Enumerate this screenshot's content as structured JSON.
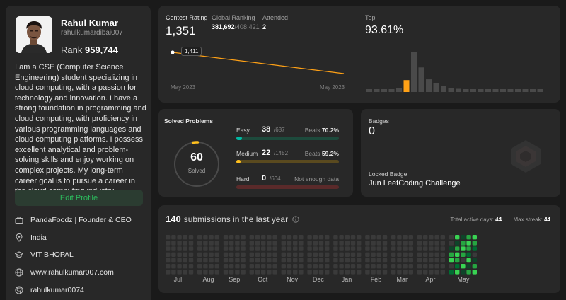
{
  "profile": {
    "name": "Rahul Kumar",
    "username": "rahulkumardibai007",
    "rank_label": "Rank",
    "rank_value": "959,744",
    "bio": "I am a CSE (Computer Science Engineering) student specializing in cloud computing, with a passion for technology and innovation. I have a strong foundation in programming and cloud computing, with proficiency in various programming languages and cloud computing platforms. I possess excellent analytical and problem-solving skills and enjoy working on complex projects. My long-term career goal is to pursue a career in the cloud computing industry.",
    "edit_button": "Edit Profile",
    "company": "PandaFoodz | Founder & CEO",
    "location": "India",
    "school": "VIT BHOPAL",
    "website": "www.rahulkumar007.com",
    "github": "rahulkumar0074"
  },
  "contest": {
    "rating_label": "Contest Rating",
    "rating_value": "1,351",
    "global_label": "Global Ranking",
    "global_value": "381,692",
    "global_total": "/408,421",
    "attended_label": "Attended",
    "attended_value": "2",
    "top_label": "Top",
    "top_value": "93.61%",
    "tooltip": "1,411",
    "month_start": "May 2023",
    "month_end": "May 2023",
    "rating_series": [
      1411,
      1351
    ],
    "histogram": [
      2,
      2,
      3,
      4,
      9,
      30,
      100,
      62,
      32,
      22,
      16,
      10,
      8,
      6,
      5,
      4,
      3,
      3,
      3,
      2,
      2,
      2,
      1,
      1
    ],
    "histogram_highlight_index": 5
  },
  "solved": {
    "title": "Solved Problems",
    "total": "60",
    "total_label": "Solved",
    "easy": {
      "label": "Easy",
      "count": "38",
      "total": "/687",
      "beats_label": "Beats",
      "beats": "70.2%",
      "fraction": 0.055
    },
    "medium": {
      "label": "Medium",
      "count": "22",
      "total": "/1452",
      "beats_label": "Beats",
      "beats": "59.2%",
      "fraction": 0.015
    },
    "hard": {
      "label": "Hard",
      "count": "0",
      "total": "/604",
      "note": "Not enough data",
      "fraction": 0
    },
    "colors": {
      "easy": "#00b8a3",
      "medium": "#ffc01e",
      "hard": "#ef4743"
    }
  },
  "badges": {
    "label": "Badges",
    "count": "0",
    "locked_label": "Locked Badge",
    "locked_name": "Jun LeetCoding Challenge"
  },
  "submissions": {
    "count": "140",
    "heading": "submissions in the last year",
    "active_label": "Total active days:",
    "active_value": "44",
    "streak_label": "Max streak:",
    "streak_value": "44",
    "months": [
      "Jul",
      "Aug",
      "Sep",
      "Oct",
      "Nov",
      "Dec",
      "Jan",
      "Feb",
      "Mar",
      "Apr",
      "May"
    ],
    "colors": {
      "empty": "#3a3a3a",
      "l1": "#0e4429",
      "l2": "#006d32",
      "l3": "#26a641",
      "l4": "#39d353"
    }
  }
}
